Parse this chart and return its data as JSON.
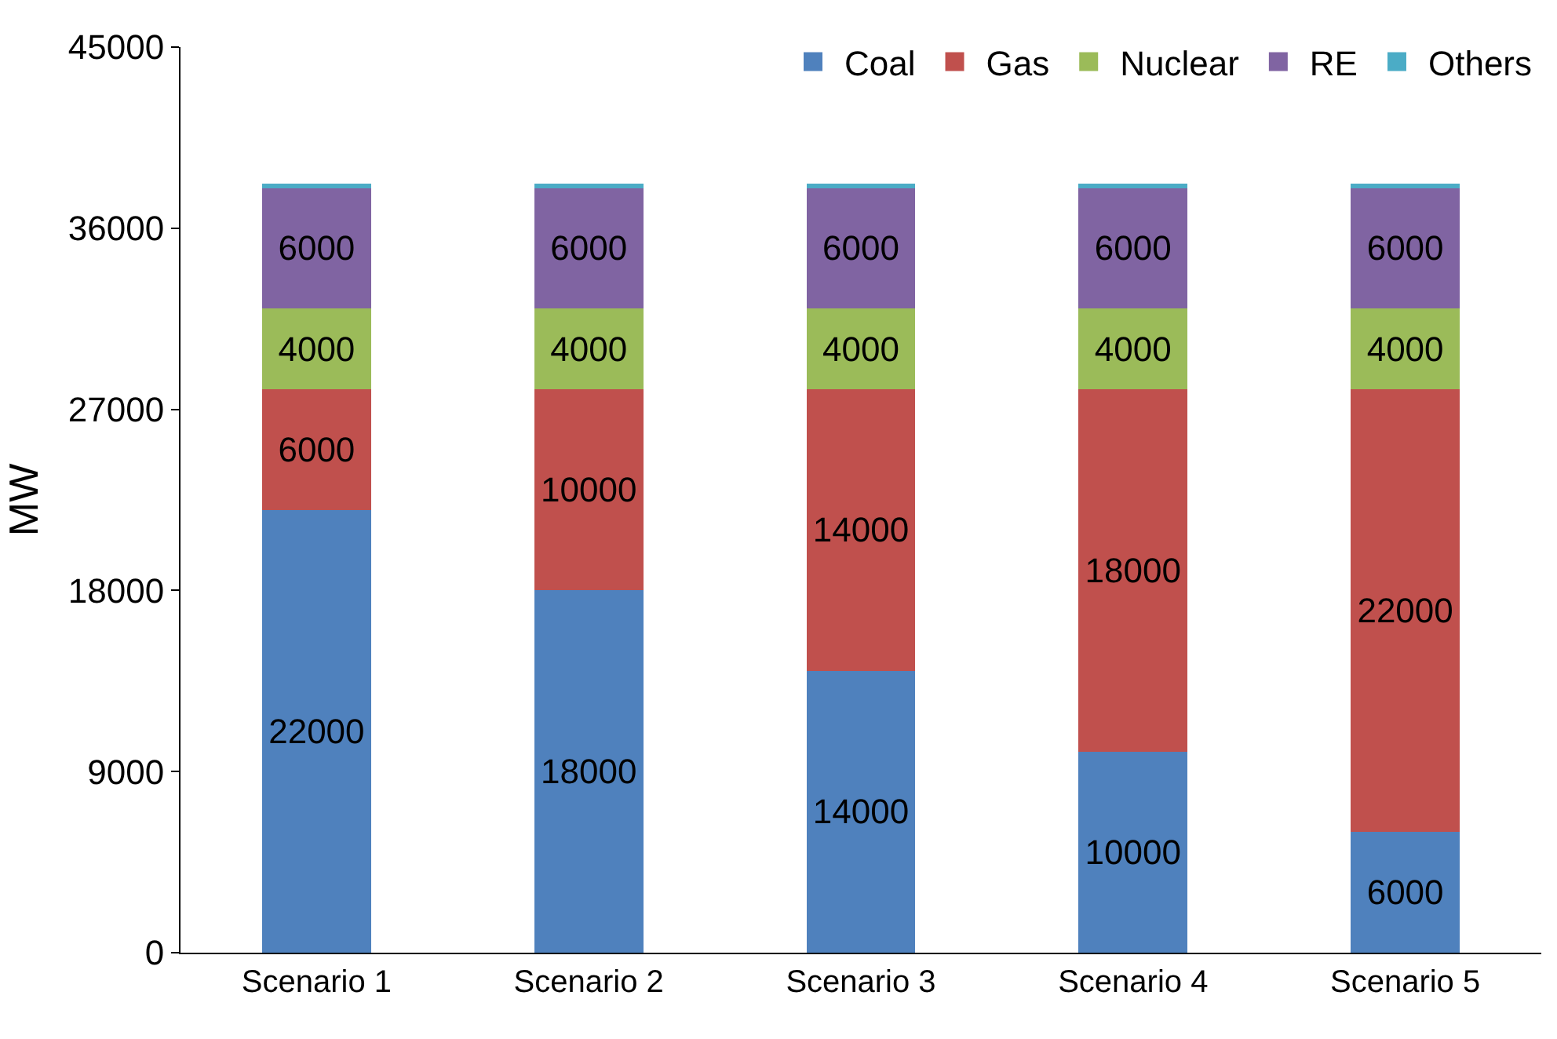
{
  "chart_data": {
    "type": "bar",
    "stacked": true,
    "ylabel": "MW",
    "categories": [
      "Scenario 1",
      "Scenario 2",
      "Scenario 3",
      "Scenario 4",
      "Scenario 5"
    ],
    "series": [
      {
        "name": "Coal",
        "color": "#4f81bd",
        "values": [
          22000,
          18000,
          14000,
          10000,
          6000
        ],
        "value_labels": [
          "22000",
          "18000",
          "14000",
          "10000",
          "6000"
        ]
      },
      {
        "name": "Gas",
        "color": "#c0504d",
        "values": [
          6000,
          10000,
          14000,
          18000,
          22000
        ],
        "value_labels": [
          "6000",
          "10000",
          "14000",
          "18000",
          "22000"
        ]
      },
      {
        "name": "Nuclear",
        "color": "#9bbb59",
        "values": [
          4000,
          4000,
          4000,
          4000,
          4000
        ],
        "value_labels": [
          "4000",
          "4000",
          "4000",
          "4000",
          "4000"
        ]
      },
      {
        "name": "RE",
        "color": "#8064a2",
        "values": [
          6000,
          6000,
          6000,
          6000,
          6000
        ],
        "value_labels": [
          "6000",
          "6000",
          "6000",
          "6000",
          "6000"
        ]
      },
      {
        "name": "Others",
        "color": "#4bacc6",
        "values": [
          200,
          200,
          200,
          200,
          200
        ]
      }
    ],
    "ylim": [
      0,
      45000
    ],
    "yticks": [
      0,
      9000,
      18000,
      27000,
      36000,
      45000
    ],
    "legend": "top right"
  }
}
